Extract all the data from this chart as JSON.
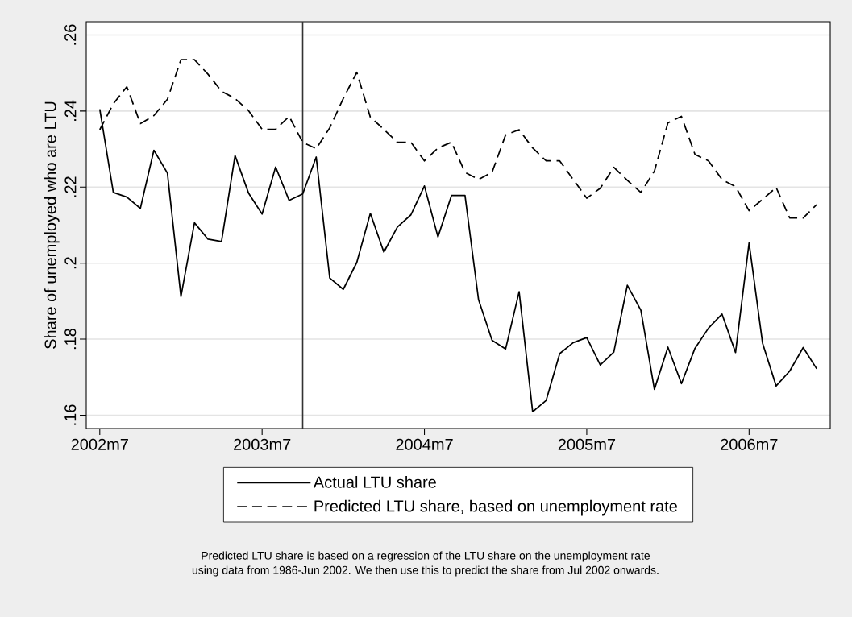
{
  "chart_data": {
    "type": "line",
    "ylabel": "Share of unemployed who are LTU",
    "x": [
      "2002-07",
      "2002-08",
      "2002-09",
      "2002-10",
      "2002-11",
      "2002-12",
      "2003-01",
      "2003-02",
      "2003-03",
      "2003-04",
      "2003-05",
      "2003-06",
      "2003-07",
      "2003-08",
      "2003-09",
      "2003-10",
      "2003-11",
      "2003-12",
      "2004-01",
      "2004-02",
      "2004-03",
      "2004-04",
      "2004-05",
      "2004-06",
      "2004-07",
      "2004-08",
      "2004-09",
      "2004-10",
      "2004-11",
      "2004-12",
      "2005-01",
      "2005-02",
      "2005-03",
      "2005-04",
      "2005-05",
      "2005-06",
      "2005-07",
      "2005-08",
      "2005-09",
      "2005-10",
      "2005-11",
      "2005-12",
      "2006-01",
      "2006-02",
      "2006-03",
      "2006-04",
      "2006-05",
      "2006-06",
      "2006-07",
      "2006-08",
      "2006-09",
      "2006-10",
      "2006-11",
      "2006-12"
    ],
    "series": [
      {
        "name": "Actual LTU share",
        "color": "#000000",
        "line_style": "solid",
        "values": [
          0.2405,
          0.2186,
          0.2174,
          0.2144,
          0.2297,
          0.2237,
          0.1912,
          0.2106,
          0.2063,
          0.2057,
          0.2283,
          0.2184,
          0.2129,
          0.2253,
          0.2165,
          0.2182,
          0.2279,
          0.1961,
          0.1931,
          0.2002,
          0.2131,
          0.2029,
          0.2095,
          0.2127,
          0.2203,
          0.2069,
          0.2178,
          0.2178,
          0.1904,
          0.1797,
          0.1774,
          0.1925,
          0.1609,
          0.1639,
          0.1762,
          0.1791,
          0.1804,
          0.1732,
          0.1766,
          0.1942,
          0.1876,
          0.1668,
          0.1779,
          0.1683,
          0.1776,
          0.1829,
          0.1866,
          0.1765,
          0.2053,
          0.1789,
          0.1677,
          0.1716,
          0.1778,
          0.1722
        ]
      },
      {
        "name": "Predicted LTU share, based on unemployment rate",
        "color": "#000000",
        "line_style": "dashed",
        "values": [
          0.2351,
          0.2419,
          0.2464,
          0.2367,
          0.2388,
          0.2431,
          0.2535,
          0.2535,
          0.2497,
          0.2452,
          0.2433,
          0.2401,
          0.2352,
          0.2352,
          0.2386,
          0.2318,
          0.2301,
          0.2356,
          0.2433,
          0.2502,
          0.2384,
          0.2352,
          0.2318,
          0.2318,
          0.2269,
          0.2303,
          0.2318,
          0.2239,
          0.222,
          0.2239,
          0.2337,
          0.2351,
          0.2303,
          0.2269,
          0.2269,
          0.222,
          0.2171,
          0.2197,
          0.2252,
          0.2218,
          0.2186,
          0.2242,
          0.2369,
          0.2386,
          0.2286,
          0.2269,
          0.222,
          0.2201,
          0.2138,
          0.2168,
          0.2199,
          0.2119,
          0.2119,
          0.2154
        ]
      }
    ],
    "xlim": [
      "2002-06",
      "2007-01"
    ],
    "xticks": [
      {
        "value": "2002-07",
        "label": "2002m7"
      },
      {
        "value": "2003-07",
        "label": "2003m7"
      },
      {
        "value": "2004-07",
        "label": "2004m7"
      },
      {
        "value": "2005-07",
        "label": "2005m7"
      },
      {
        "value": "2006-07",
        "label": "2006m7"
      }
    ],
    "ylim": [
      0.1565,
      0.2635
    ],
    "yticks": [
      {
        "value": 0.16,
        "label": ".16"
      },
      {
        "value": 0.18,
        "label": ".18"
      },
      {
        "value": 0.2,
        "label": ".2"
      },
      {
        "value": 0.22,
        "label": ".22"
      },
      {
        "value": 0.24,
        "label": ".24"
      },
      {
        "value": 0.26,
        "label": ".26"
      }
    ],
    "ref_lines": [
      {
        "axis": "x",
        "value": "2003-10",
        "color": "#333333"
      }
    ],
    "grid": "y",
    "legend": "bottom",
    "annotations": [
      "Predicted LTU share is based on a regression of the LTU share on the unemployment rate",
      "using data from 1986-Jun 2002. We then use this to predict the share from Jul 2002 onwards."
    ]
  }
}
